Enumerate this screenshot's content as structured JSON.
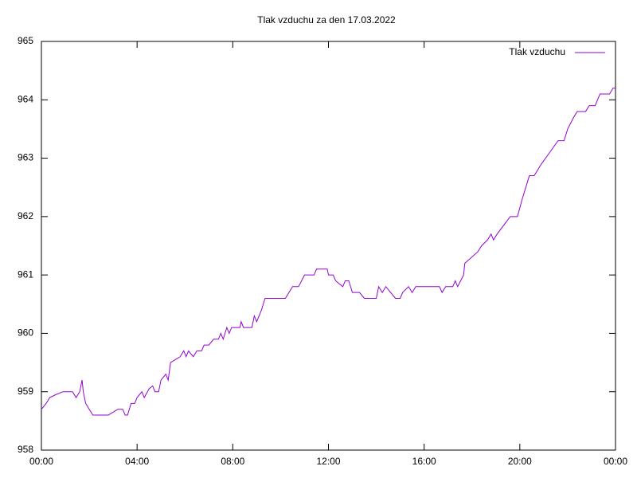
{
  "chart_data": {
    "type": "line",
    "title": "Tlak vzduchu za den 17.03.2022",
    "x": [
      0,
      0.2,
      0.35,
      0.6,
      0.9,
      1.3,
      1.45,
      1.6,
      1.7,
      1.75,
      1.85,
      2.0,
      2.15,
      2.6,
      2.8,
      3.0,
      3.2,
      3.4,
      3.5,
      3.6,
      3.75,
      3.9,
      4.0,
      4.2,
      4.3,
      4.5,
      4.65,
      4.75,
      4.9,
      5.0,
      5.2,
      5.3,
      5.4,
      5.6,
      5.8,
      5.95,
      6.05,
      6.15,
      6.35,
      6.5,
      6.7,
      6.8,
      7.0,
      7.2,
      7.4,
      7.5,
      7.6,
      7.75,
      7.85,
      7.95,
      8.3,
      8.35,
      8.45,
      8.8,
      8.9,
      9.0,
      9.2,
      9.35,
      10.2,
      10.5,
      10.75,
      11.0,
      11.4,
      11.5,
      11.95,
      12.0,
      12.2,
      12.3,
      12.6,
      12.7,
      12.85,
      13.0,
      13.3,
      13.5,
      14.0,
      14.1,
      14.25,
      14.4,
      14.6,
      14.8,
      15.0,
      15.1,
      15.35,
      15.5,
      15.65,
      16.64,
      16.75,
      16.9,
      17.2,
      17.3,
      17.4,
      17.65,
      17.7,
      18.25,
      18.4,
      18.65,
      18.8,
      18.9,
      19.05,
      19.6,
      19.9,
      20.1,
      20.4,
      20.6,
      20.9,
      21.25,
      21.6,
      21.85,
      22.0,
      22.25,
      22.4,
      22.75,
      22.9,
      23.15,
      23.35,
      23.75,
      23.9,
      24
    ],
    "series": [
      {
        "name": "Tlak vzduchu",
        "color": "#9400d3",
        "values": [
          958.7,
          958.8,
          958.9,
          958.95,
          959.0,
          959.0,
          958.9,
          959.0,
          959.2,
          959.0,
          958.8,
          958.7,
          958.6,
          958.6,
          958.6,
          958.65,
          958.7,
          958.7,
          958.6,
          958.6,
          958.8,
          958.8,
          958.9,
          959.0,
          958.9,
          959.05,
          959.1,
          959.0,
          959.0,
          959.2,
          959.3,
          959.2,
          959.5,
          959.55,
          959.6,
          959.7,
          959.6,
          959.7,
          959.6,
          959.7,
          959.7,
          959.8,
          959.8,
          959.9,
          959.9,
          960.0,
          959.9,
          960.1,
          960.0,
          960.1,
          960.1,
          960.2,
          960.1,
          960.1,
          960.3,
          960.2,
          960.4,
          960.6,
          960.6,
          960.8,
          960.8,
          961.0,
          961.0,
          961.1,
          961.1,
          961.0,
          961.0,
          960.9,
          960.8,
          960.9,
          960.9,
          960.7,
          960.7,
          960.6,
          960.6,
          960.8,
          960.7,
          960.8,
          960.7,
          960.6,
          960.6,
          960.7,
          960.8,
          960.7,
          960.8,
          960.8,
          960.7,
          960.8,
          960.8,
          960.9,
          960.8,
          961.0,
          961.2,
          961.4,
          961.5,
          961.6,
          961.7,
          961.6,
          961.7,
          962.0,
          962.0,
          962.3,
          962.7,
          962.7,
          962.9,
          963.1,
          963.3,
          963.3,
          963.5,
          963.7,
          963.8,
          963.8,
          963.9,
          963.9,
          964.1,
          964.1,
          964.2,
          964.2
        ]
      }
    ],
    "xlim": [
      0,
      24
    ],
    "xticks": [
      {
        "value": 0,
        "label": "00:00"
      },
      {
        "value": 4,
        "label": "04:00"
      },
      {
        "value": 8,
        "label": "08:00"
      },
      {
        "value": 12,
        "label": "12:00"
      },
      {
        "value": 16,
        "label": "16:00"
      },
      {
        "value": 20,
        "label": "20:00"
      },
      {
        "value": 24,
        "label": "00:00"
      }
    ],
    "ylim": [
      958,
      965
    ],
    "yticks": [
      958,
      959,
      960,
      961,
      962,
      963,
      964,
      965
    ],
    "grid": false,
    "legend": "top-right"
  }
}
